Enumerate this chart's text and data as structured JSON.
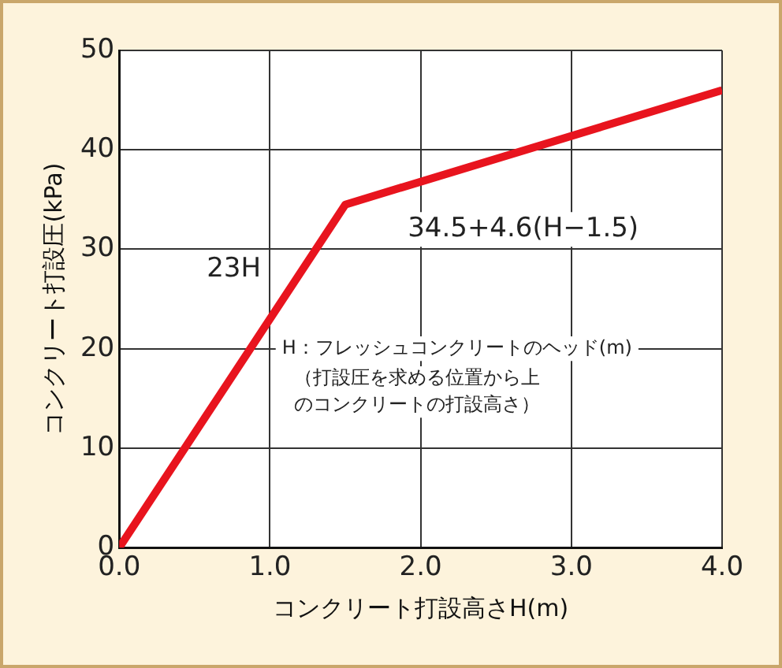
{
  "chart_data": {
    "type": "line",
    "xlabel": "コンクリート打設高さH(m)",
    "ylabel": "コンクリート打設圧(kPa)",
    "x": [
      0,
      1.5,
      4.0
    ],
    "series": [
      {
        "color": "#e8141e",
        "values": [
          0,
          34.5,
          46.0
        ]
      }
    ],
    "xlim": [
      0,
      4
    ],
    "xticks": [
      {
        "value": 0,
        "label": "0.0"
      },
      {
        "value": 1,
        "label": "1.0"
      },
      {
        "value": 2,
        "label": "2.0"
      },
      {
        "value": 3,
        "label": "3.0"
      },
      {
        "value": 4,
        "label": "4.0"
      }
    ],
    "ylim": [
      0,
      50
    ],
    "yticks": [
      0,
      10,
      20,
      30,
      40,
      50
    ],
    "grid": true,
    "legend": false,
    "marker": "none",
    "line_style": "solid",
    "annotations": [
      "23H",
      "34.5+4.6(H−1.5)",
      "H：フレッシュコンクリートのヘッド(m)",
      "（打設圧を求める位置から上のコンクリートの打設高さ）"
    ]
  }
}
